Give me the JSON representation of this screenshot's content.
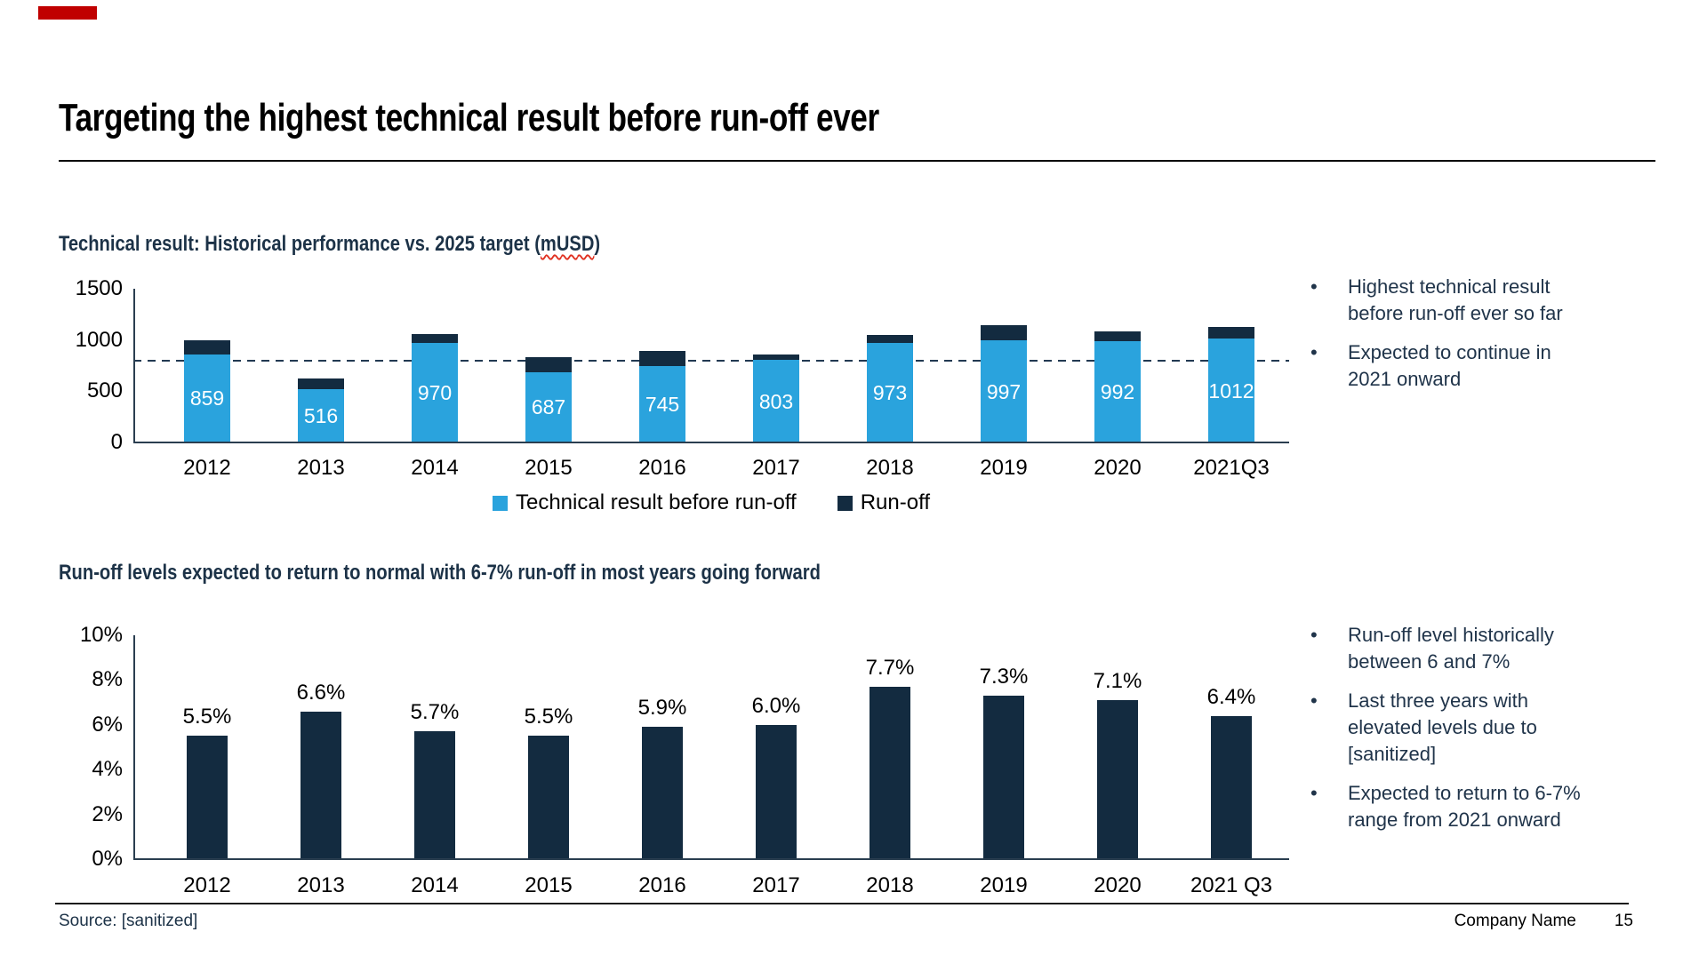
{
  "slide": {
    "title": "Targeting the highest technical result before run-off ever",
    "accent_color": "#C00000",
    "footer": {
      "source": "Source: [sanitized]",
      "company": "Company Name",
      "page_number": "15"
    }
  },
  "section1": {
    "heading_prefix": "Technical result: Historical performance vs. 2025 target (",
    "heading_unit": "mUSD",
    "heading_suffix": ")",
    "bullets": [
      "Highest technical result\nbefore run-off ever so far",
      "Expected to continue in\n2021 onward"
    ]
  },
  "section2": {
    "heading": "Run-off levels expected to return to normal with 6-7% run-off in most years going forward",
    "bullets": [
      "Run-off level historically\nbetween 6 and 7%",
      "Last three years with\nelevated levels due to\n[sanitized]",
      "Expected to return to 6-7%\nrange from 2021 onward"
    ]
  },
  "chart_data": [
    {
      "type": "bar",
      "stacked": true,
      "title": "Technical result: Historical performance vs. 2025 target (mUSD)",
      "categories": [
        "2012",
        "2013",
        "2014",
        "2015",
        "2016",
        "2017",
        "2018",
        "2019",
        "2020",
        "2021Q3"
      ],
      "series": [
        {
          "name": "Technical result before run-off",
          "color": "#2AA3DD",
          "values": [
            859,
            516,
            970,
            687,
            745,
            803,
            973,
            997,
            992,
            1012
          ]
        },
        {
          "name": "Run-off",
          "color": "#132B40",
          "values_estimated": [
            140,
            110,
            90,
            145,
            145,
            55,
            80,
            150,
            90,
            115
          ]
        }
      ],
      "value_labels": [
        "859",
        "516",
        "970",
        "687",
        "745",
        "803",
        "973",
        "997",
        "992",
        "1012"
      ],
      "target_line": {
        "value": 800,
        "style": "dashed",
        "color": "#223A52"
      },
      "ylim": [
        0,
        1500
      ],
      "yticks": [
        0,
        500,
        1000,
        1500
      ],
      "ytick_labels": [
        "0",
        "500",
        "1000",
        "1500"
      ],
      "legend_position": "bottom",
      "grid": false
    },
    {
      "type": "bar",
      "stacked": false,
      "title": "Run-off levels expected to return to normal with 6-7% run-off in most years going forward",
      "categories": [
        "2012",
        "2013",
        "2014",
        "2015",
        "2016",
        "2017",
        "2018",
        "2019",
        "2020",
        "2021 Q3"
      ],
      "values": [
        5.5,
        6.6,
        5.7,
        5.5,
        5.9,
        6.0,
        7.7,
        7.3,
        7.1,
        6.4
      ],
      "value_labels": [
        "5.5%",
        "6.6%",
        "5.7%",
        "5.5%",
        "5.9%",
        "6.0%",
        "7.7%",
        "7.3%",
        "7.1%",
        "6.4%"
      ],
      "bar_color": "#132B40",
      "ylim": [
        0,
        10
      ],
      "yticks": [
        0,
        2,
        4,
        6,
        8,
        10
      ],
      "ytick_labels": [
        "0%",
        "2%",
        "4%",
        "6%",
        "8%",
        "10%"
      ],
      "grid": false
    }
  ],
  "colors": {
    "accent_red": "#C00000",
    "bar_blue": "#2AA3DD",
    "bar_navy": "#132B40",
    "heading_navy": "#1C3247",
    "bullet_navy": "#20344A",
    "axis": "#2A3E50",
    "target_dash": "#223A52"
  }
}
